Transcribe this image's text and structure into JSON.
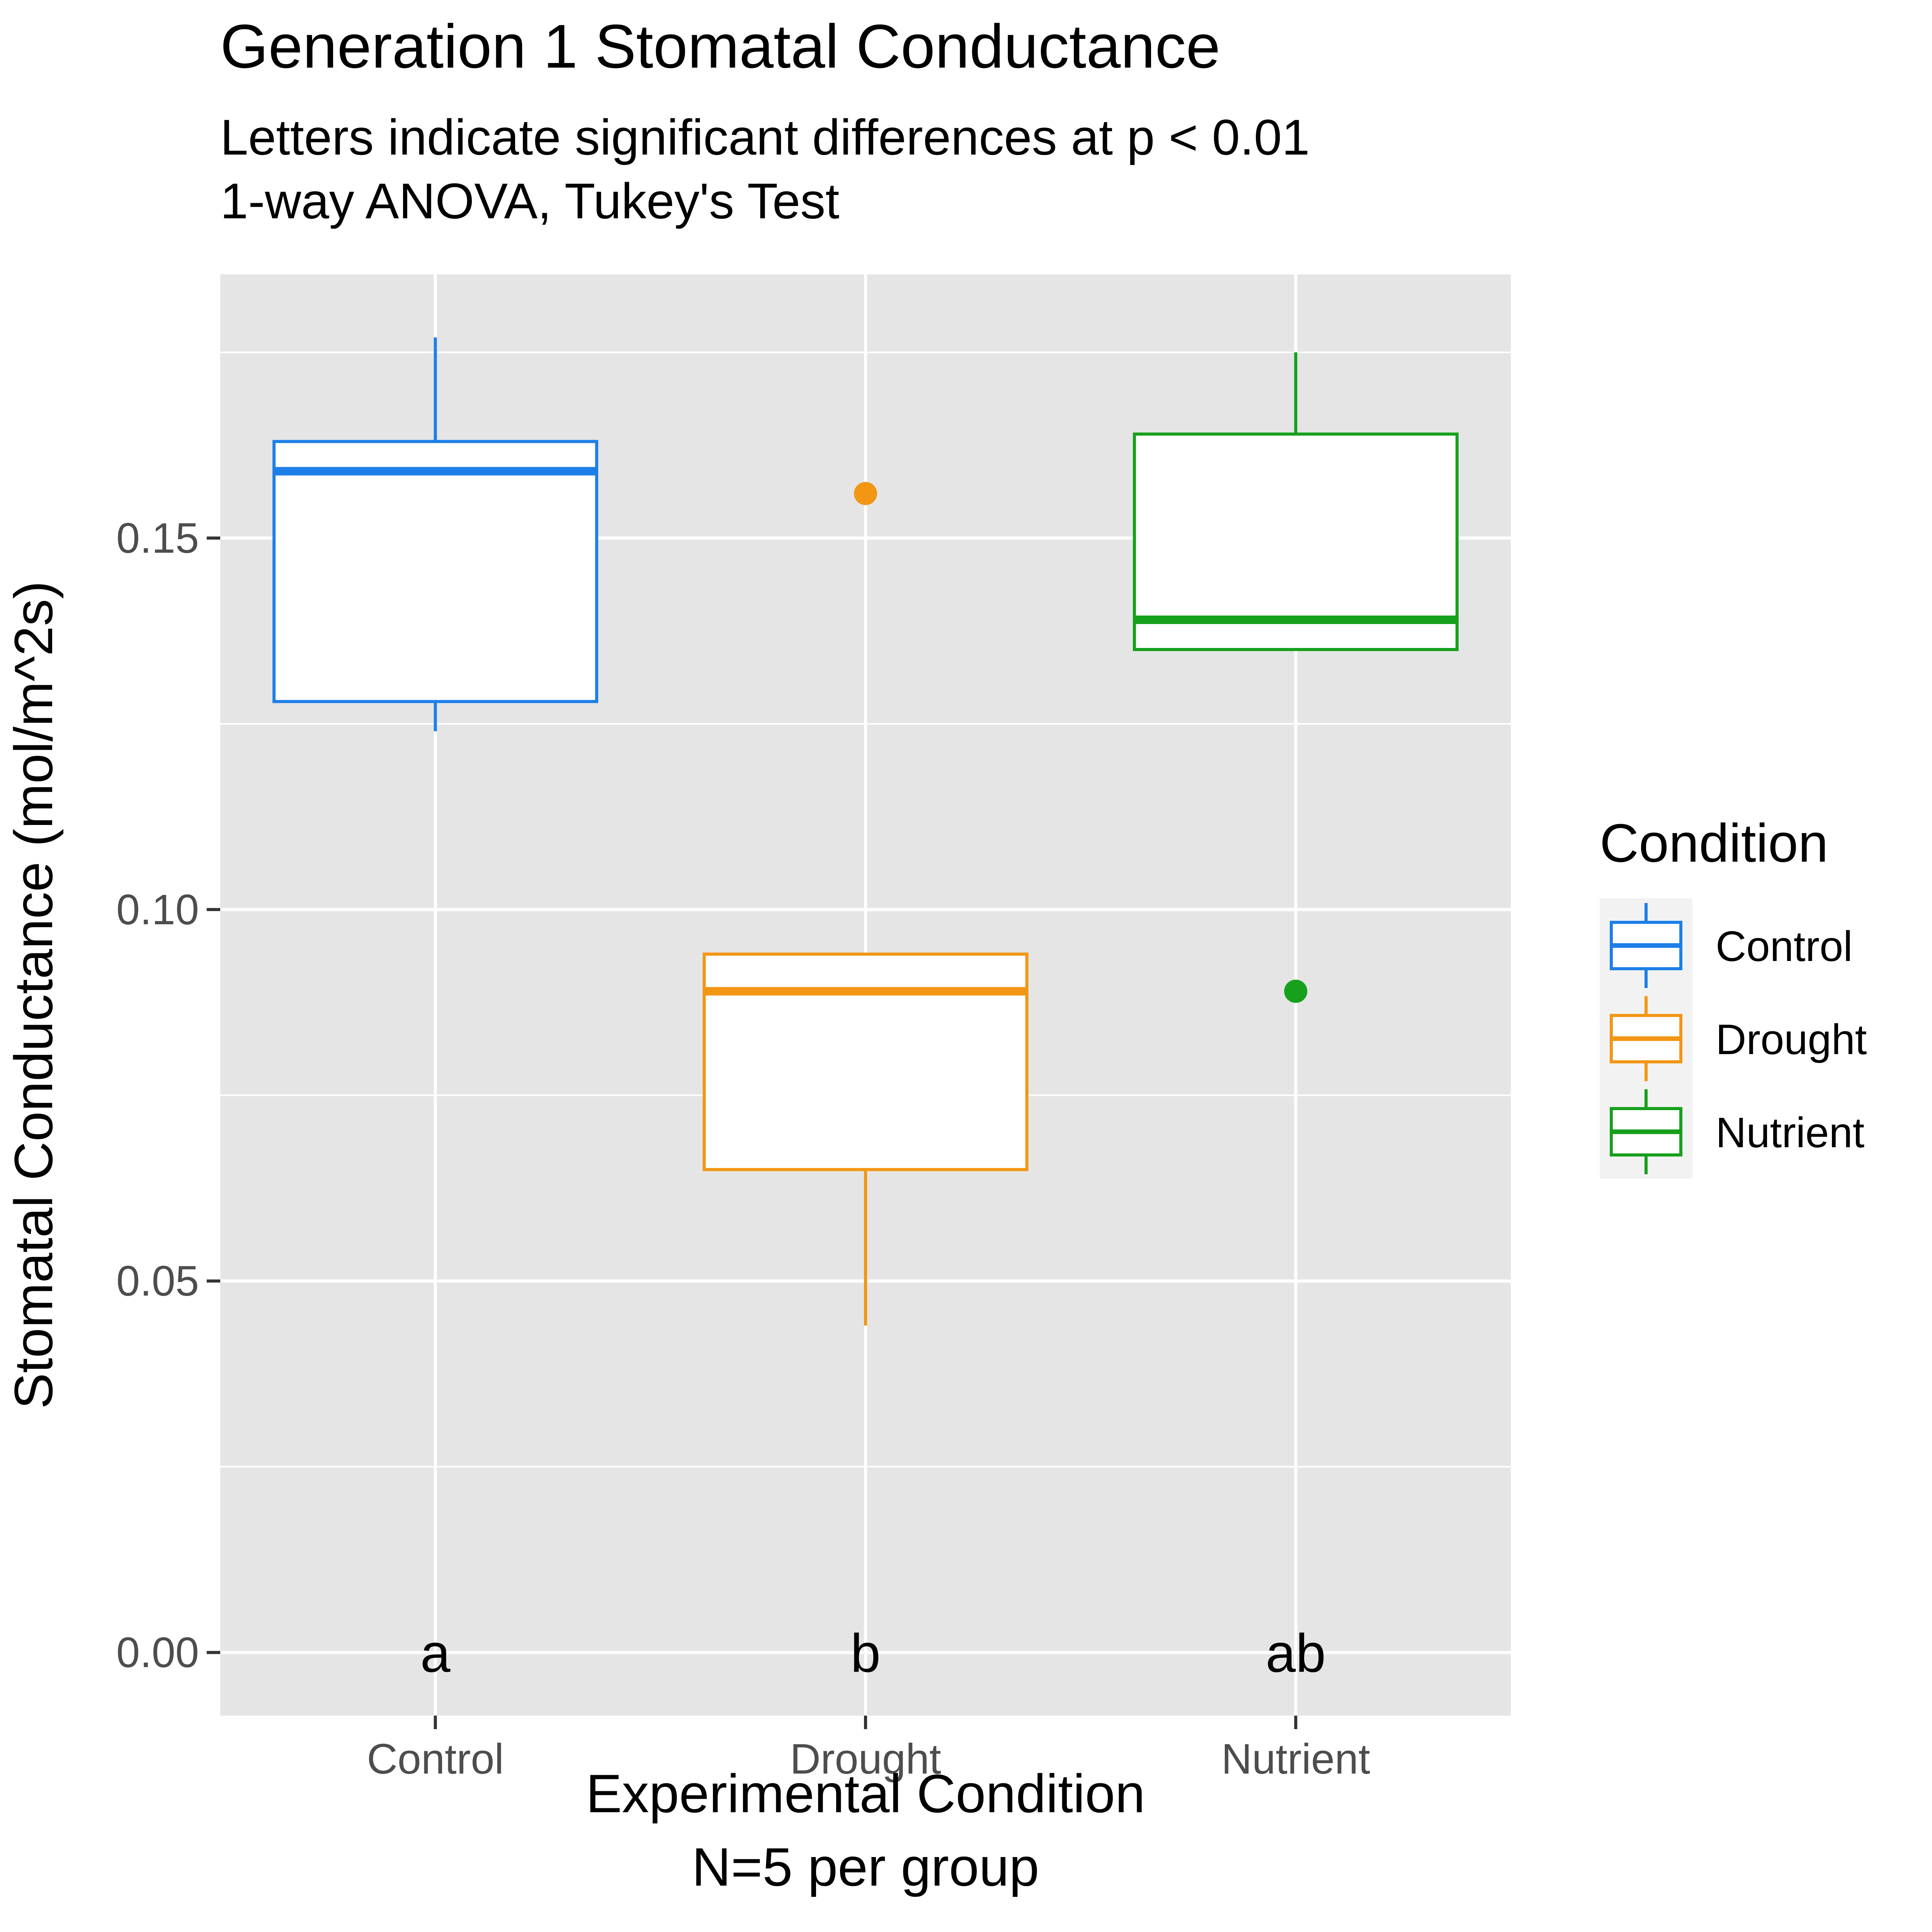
{
  "chart_data": {
    "type": "box",
    "title": "Generation 1 Stomatal Conductance",
    "subtitle_lines": [
      "Letters indicate significant differences at p < 0.01",
      "1-way ANOVA, Tukey's Test"
    ],
    "xlabel_lines": [
      "Experimental Condition",
      "N=5 per group"
    ],
    "ylabel": "Stomatal Conductance (mol/m^2s)",
    "ylim": [
      -0.0085,
      0.1855
    ],
    "y_ticks": [
      {
        "value": 0.0,
        "label": "0.00"
      },
      {
        "value": 0.05,
        "label": "0.05"
      },
      {
        "value": 0.1,
        "label": "0.10"
      },
      {
        "value": 0.15,
        "label": "0.15"
      }
    ],
    "y_minor_gridlines": [
      0.025,
      0.075,
      0.125,
      0.175
    ],
    "grid": true,
    "legend": {
      "title": "Condition",
      "position": "right",
      "entries": [
        "Control",
        "Drought",
        "Nutrient"
      ]
    },
    "categories": [
      "Control",
      "Drought",
      "Nutrient"
    ],
    "series": [
      {
        "name": "Control",
        "color": "#1c7fe8",
        "whisker_low": 0.124,
        "q1": 0.128,
        "median": 0.159,
        "q3": 0.163,
        "whisker_high": 0.177,
        "outliers": [],
        "letter": "a"
      },
      {
        "name": "Drought",
        "color": "#f29614",
        "whisker_low": 0.044,
        "q1": 0.065,
        "median": 0.089,
        "q3": 0.094,
        "whisker_high": 0.094,
        "outliers": [
          0.156
        ],
        "letter": "b"
      },
      {
        "name": "Nutrient",
        "color": "#16a01c",
        "whisker_low": 0.135,
        "q1": 0.135,
        "median": 0.139,
        "q3": 0.164,
        "whisker_high": 0.175,
        "outliers": [
          0.089
        ],
        "letter": "ab"
      }
    ],
    "letters_y": 0.0
  }
}
